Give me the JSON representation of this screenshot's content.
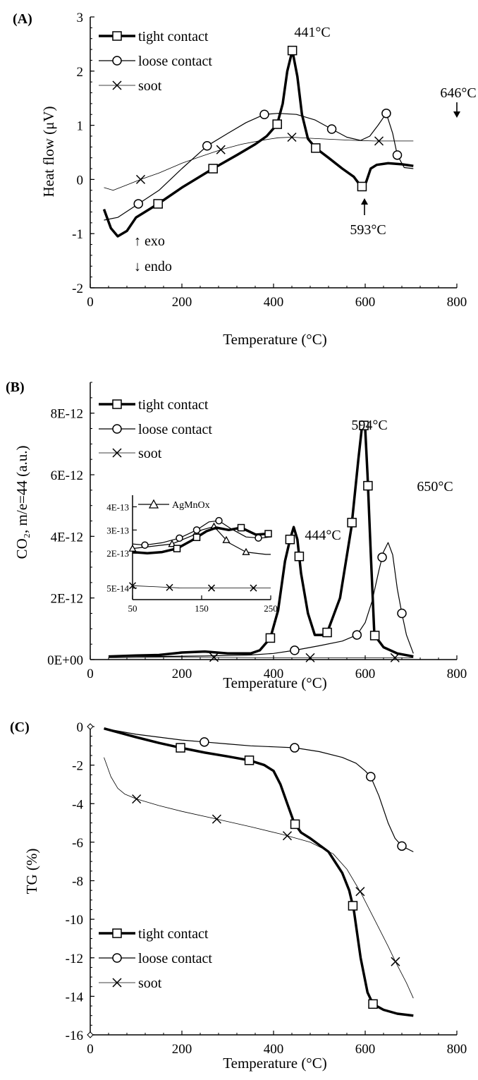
{
  "panels": [
    {
      "label": "(A)",
      "ylabel": "Heat flow (μV)",
      "xlabel": "Temperature (°C)",
      "legend": [
        "tight contact",
        "loose contact",
        "soot"
      ],
      "annotations": [
        "441°C",
        "646°C",
        "593°C",
        "↑ exo",
        "↓ endo"
      ]
    },
    {
      "label": "(B)",
      "ylabel": "CO₂, m/e=44 (a.u.)",
      "xlabel": "Temperature (°C)",
      "legend": [
        "tight contact",
        "loose contact",
        "soot"
      ],
      "annotations": [
        "444°C",
        "594°C",
        "650°C"
      ],
      "inset_legend": "AgMnOx"
    },
    {
      "label": "(C)",
      "ylabel": "TG (%)",
      "xlabel": "Temperature (°C)",
      "legend": [
        "tight contact",
        "loose contact",
        "soot"
      ],
      "annotations": []
    }
  ],
  "chart_data": [
    {
      "type": "line",
      "title": "(A)",
      "xlabel": "Temperature (°C)",
      "ylabel": "Heat flow (μV)",
      "xlim": [
        0,
        800
      ],
      "ylim": [
        -2,
        3
      ],
      "xticks": [
        "0",
        "200",
        "400",
        "600",
        "800"
      ],
      "yticks": [
        "-2",
        "-1",
        "0",
        "1",
        "2",
        "3"
      ],
      "legend_position": "top-left",
      "series": [
        {
          "name": "tight contact",
          "marker": "square",
          "x": [
            30,
            45,
            60,
            80,
            100,
            148,
            200,
            268,
            320,
            360,
            385,
            408,
            420,
            430,
            441,
            452,
            462,
            475,
            492,
            520,
            550,
            575,
            592,
            602,
            612,
            625,
            650,
            680,
            705
          ],
          "y": [
            -0.55,
            -0.9,
            -1.05,
            -0.95,
            -0.7,
            -0.45,
            -0.15,
            0.2,
            0.45,
            0.65,
            0.8,
            1.02,
            1.4,
            2.0,
            2.38,
            1.9,
            1.2,
            0.75,
            0.58,
            0.4,
            0.2,
            0.05,
            -0.14,
            -0.05,
            0.2,
            0.27,
            0.3,
            0.28,
            0.25
          ],
          "marker_x": [
            148,
            268,
            408,
            441,
            492,
            593
          ]
        },
        {
          "name": "loose contact",
          "marker": "circle",
          "x": [
            30,
            60,
            105,
            150,
            200,
            255,
            300,
            340,
            380,
            410,
            450,
            490,
            527,
            560,
            590,
            610,
            628,
            646,
            660,
            670,
            685,
            705
          ],
          "y": [
            -0.75,
            -0.7,
            -0.45,
            -0.2,
            0.2,
            0.62,
            0.85,
            1.05,
            1.2,
            1.22,
            1.2,
            1.1,
            0.93,
            0.78,
            0.72,
            0.8,
            1.0,
            1.22,
            0.85,
            0.45,
            0.22,
            0.2
          ],
          "marker_x": [
            105,
            255,
            380,
            527,
            646,
            670
          ]
        },
        {
          "name": "soot",
          "marker": "x",
          "x": [
            30,
            50,
            80,
            110,
            150,
            200,
            240,
            285,
            330,
            380,
            410,
            440,
            480,
            530,
            580,
            620,
            640,
            670,
            705
          ],
          "y": [
            -0.15,
            -0.2,
            -0.1,
            0.0,
            0.12,
            0.3,
            0.42,
            0.55,
            0.65,
            0.73,
            0.77,
            0.78,
            0.76,
            0.74,
            0.72,
            0.71,
            0.71,
            0.71,
            0.71
          ],
          "marker_x": [
            110,
            285,
            440,
            630
          ]
        }
      ]
    },
    {
      "type": "line",
      "title": "(B)",
      "xlabel": "Temperature (°C)",
      "ylabel": "CO2, m/e=44 (a.u.)",
      "xlim": [
        0,
        800
      ],
      "ylim": [
        0,
        9e-12
      ],
      "xticks": [
        "0",
        "200",
        "400",
        "600",
        "800"
      ],
      "yticks": [
        "0E+00",
        "2E-12",
        "4E-12",
        "6E-12",
        "8E-12"
      ],
      "legend_position": "top-left",
      "series": [
        {
          "name": "tight contact",
          "marker": "square",
          "x": [
            40,
            100,
            150,
            200,
            250,
            300,
            350,
            370,
            393,
            410,
            425,
            436,
            444,
            452,
            460,
            475,
            490,
            515,
            545,
            570,
            585,
            594,
            600,
            605,
            612,
            620,
            640,
            670,
            705
          ],
          "y": [
            1e-13,
            1.3e-13,
            1.5e-13,
            2.3e-13,
            2.6e-13,
            2e-13,
            2e-13,
            3e-13,
            7e-13,
            1.6e-12,
            3.2e-12,
            3.9e-12,
            4.3e-12,
            3.9e-12,
            2.8e-12,
            1.5e-12,
            8e-13,
            8e-13,
            2e-12,
            4.3e-12,
            6.5e-12,
            7.7e-12,
            7.5e-12,
            6e-12,
            3.5e-12,
            8e-13,
            4e-13,
            2e-13,
            1e-13
          ],
          "marker_x": [
            393,
            436,
            456,
            517,
            571,
            597,
            606,
            621
          ]
        },
        {
          "name": "loose contact",
          "marker": "circle",
          "x": [
            40,
            150,
            250,
            350,
            400,
            446,
            500,
            550,
            582,
            600,
            615,
            630,
            640,
            650,
            660,
            670,
            680,
            690,
            705
          ],
          "y": [
            1e-13,
            1e-13,
            1.2e-13,
            1.5e-13,
            2e-13,
            3e-13,
            4.5e-13,
            6e-13,
            8e-13,
            1.2e-12,
            1.9e-12,
            2.9e-12,
            3.5e-12,
            3.8e-12,
            3.4e-12,
            2.3e-12,
            1.5e-12,
            8e-13,
            2e-13
          ],
          "marker_x": [
            446,
            582,
            637,
            680
          ]
        },
        {
          "name": "soot",
          "marker": "x",
          "x": [
            40,
            200,
            400,
            600,
            705
          ],
          "y": [
            6e-14,
            8e-14,
            6e-14,
            6e-14,
            6e-14
          ],
          "marker_x": [
            270,
            480,
            665
          ]
        }
      ],
      "inset": {
        "xlim": [
          50,
          330
        ],
        "ylim": [
          0,
          4.5e-13
        ],
        "xticks": [
          "50",
          "150",
          "250"
        ],
        "yticks": [
          "5E-14",
          "2E-13",
          "3E-13",
          "4E-13"
        ],
        "series": [
          {
            "name": "AgMnOx",
            "marker": "triangle",
            "x": [
              50,
              90,
              130,
              170,
              190,
              215,
              245,
              280,
              320,
              330
            ],
            "y": [
              2.2e-13,
              2.3e-13,
              2.4e-13,
              2.75e-13,
              3e-13,
              3.15e-13,
              2.45e-13,
              2.05e-13,
              1.95e-13,
              1.95e-13
            ],
            "marker_x": [
              50,
              130,
              180,
              215,
              240,
              280
            ]
          },
          {
            "series_ref": "tight contact",
            "marker": "square",
            "x": [
              50,
              80,
              110,
              140,
              170,
              200,
              220,
              245,
              270,
              300,
              330
            ],
            "y": [
              2.05e-13,
              2e-13,
              2.05e-13,
              2.2e-13,
              2.55e-13,
              2.95e-13,
              3.1e-13,
              3e-13,
              3.1e-13,
              2.8e-13,
              2.85e-13
            ],
            "marker_x": [
              140,
              180,
              270,
              325
            ]
          },
          {
            "series_ref": "loose contact",
            "marker": "circle",
            "x": [
              50,
              75,
              110,
              145,
              180,
              205,
              225,
              250,
              280,
              310,
              330
            ],
            "y": [
              2.4e-13,
              2.35e-13,
              2.45e-13,
              2.65e-13,
              3e-13,
              3.35e-13,
              3.4e-13,
              3.05e-13,
              2.7e-13,
              2.65e-13,
              2.7e-13
            ],
            "marker_x": [
              75,
              145,
              180,
              225,
              305
            ]
          },
          {
            "series_ref": "soot",
            "marker": "x",
            "x": [
              50,
              100,
              150,
              200,
              250,
              300,
              330
            ],
            "y": [
              6e-14,
              5.5e-14,
              5e-14,
              5e-14,
              5e-14,
              5e-14,
              5e-14
            ],
            "marker_x": [
              50,
              125,
              210,
              295
            ]
          }
        ]
      }
    },
    {
      "type": "line",
      "title": "(C)",
      "xlabel": "Temperature (°C)",
      "ylabel": "TG (%)",
      "xlim": [
        0,
        800
      ],
      "ylim": [
        -16,
        0
      ],
      "xticks": [
        "0",
        "200",
        "400",
        "600",
        "800"
      ],
      "yticks": [
        "0",
        "-2",
        "-4",
        "-6",
        "-8",
        "-10",
        "-12",
        "-14",
        "-16"
      ],
      "legend_position": "bottom-left",
      "series": [
        {
          "name": "tight contact",
          "marker": "square",
          "x": [
            30,
            100,
            150,
            197,
            250,
            300,
            347,
            380,
            400,
            415,
            430,
            445,
            460,
            480,
            520,
            550,
            565,
            575,
            590,
            605,
            617,
            640,
            670,
            705
          ],
          "y": [
            -0.1,
            -0.55,
            -0.85,
            -1.1,
            -1.35,
            -1.55,
            -1.75,
            -2.0,
            -2.3,
            -3.0,
            -4.0,
            -5.0,
            -5.5,
            -5.8,
            -6.5,
            -7.6,
            -8.5,
            -9.5,
            -12.0,
            -13.8,
            -14.4,
            -14.7,
            -14.9,
            -15.0
          ],
          "marker_x": [
            197,
            347,
            447,
            573,
            617
          ]
        },
        {
          "name": "loose contact",
          "marker": "circle",
          "x": [
            30,
            100,
            150,
            200,
            249,
            300,
            350,
            400,
            446,
            500,
            550,
            580,
            600,
            612,
            630,
            650,
            665,
            680,
            705
          ],
          "y": [
            -0.1,
            -0.4,
            -0.55,
            -0.7,
            -0.8,
            -0.9,
            -1.0,
            -1.05,
            -1.1,
            -1.3,
            -1.6,
            -1.9,
            -2.3,
            -2.6,
            -3.6,
            -5.0,
            -5.8,
            -6.2,
            -6.5
          ],
          "marker_x": [
            249,
            446,
            612,
            680
          ]
        },
        {
          "name": "soot",
          "marker": "x",
          "x": [
            30,
            45,
            60,
            75,
            100,
            150,
            200,
            276,
            350,
            420,
            480,
            530,
            560,
            590,
            620,
            650,
            666,
            690,
            705
          ],
          "y": [
            -1.6,
            -2.6,
            -3.2,
            -3.5,
            -3.75,
            -4.1,
            -4.4,
            -4.8,
            -5.2,
            -5.6,
            -6.0,
            -6.6,
            -7.4,
            -8.6,
            -10.0,
            -11.4,
            -12.2,
            -13.3,
            -14.1
          ],
          "marker_x": [
            101,
            276,
            430,
            589,
            666
          ]
        }
      ]
    }
  ]
}
